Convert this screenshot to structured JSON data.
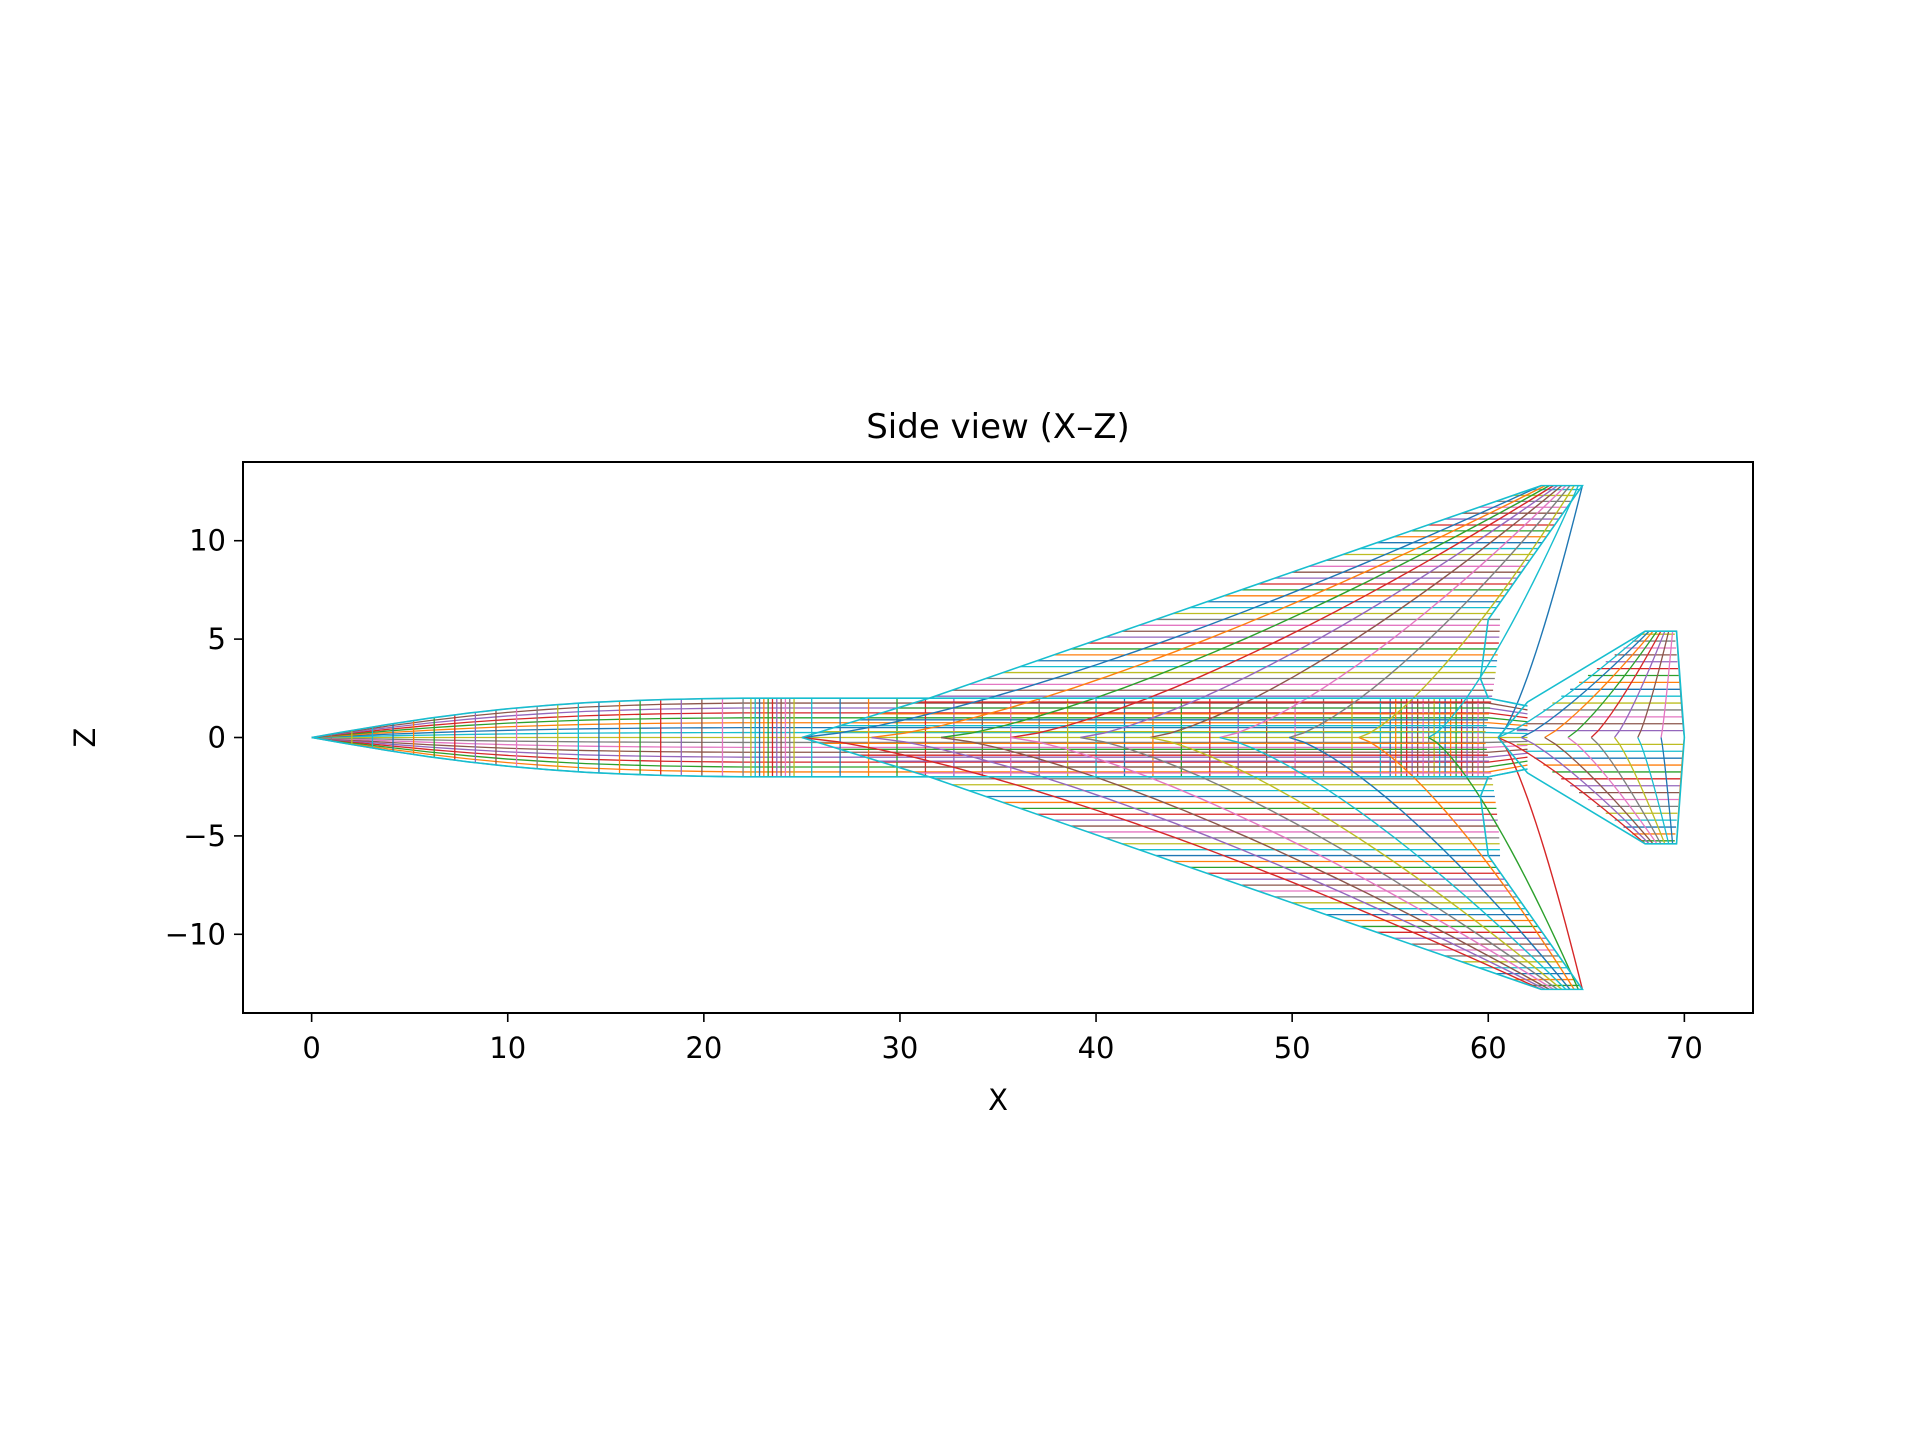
{
  "chart_data": {
    "type": "line",
    "title": "Side view (X–Z)",
    "xlabel": "X",
    "ylabel": "Z",
    "xlim": [
      -3.5,
      73.5
    ],
    "ylim": [
      -14,
      14
    ],
    "xticks": [
      0,
      10,
      20,
      30,
      40,
      50,
      60,
      70
    ],
    "yticks": [
      -10,
      -5,
      0,
      5,
      10
    ],
    "xtick_labels": [
      "0",
      "10",
      "20",
      "30",
      "40",
      "50",
      "60",
      "70"
    ],
    "ytick_labels": [
      "−10",
      "−5",
      "0",
      "5",
      "10"
    ],
    "grid": false,
    "legend": "none",
    "series_colors": [
      "#1f77b4",
      "#ff7f0e",
      "#2ca02c",
      "#d62728",
      "#9467bd",
      "#8c564b",
      "#e377c2",
      "#7f7f7f",
      "#bcbd22",
      "#17becf"
    ],
    "components": [
      {
        "name": "fuselage",
        "outline": {
          "x": [
            0,
            2,
            4,
            6,
            8,
            10,
            12,
            14,
            16,
            18,
            20,
            22,
            25,
            28,
            31,
            34,
            37,
            40,
            43,
            46,
            49,
            52,
            55,
            58,
            60,
            62
          ],
          "z": [
            0,
            0.35,
            0.68,
            0.98,
            1.24,
            1.46,
            1.63,
            1.77,
            1.86,
            1.93,
            1.97,
            2.0,
            2.0,
            2.0,
            2.0,
            2.0,
            2.0,
            2.0,
            2.0,
            2.0,
            2.0,
            2.0,
            2.0,
            2.0,
            2.0,
            1.6
          ]
        },
        "station_count": 90
      },
      {
        "name": "main-wing",
        "outline": {
          "x": [
            25,
            31.5,
            35,
            40,
            45,
            50,
            54,
            58,
            60,
            62.7,
            64.8,
            60,
            58,
            55,
            50,
            45,
            40,
            35,
            31.5,
            25
          ],
          "z": [
            0,
            2.0,
            3.3,
            4.9,
            6.5,
            8.2,
            9.7,
            11.3,
            12.8,
            12.8,
            12.8,
            6.0,
            4.9,
            3.8,
            2.6,
            1.7,
            0.9,
            0.3,
            0.05,
            0
          ]
        }
      },
      {
        "name": "tail",
        "outline": {
          "x": [
            60.5,
            62,
            64,
            66,
            68,
            69.6,
            70,
            69.6,
            68,
            66,
            64,
            62,
            60.5
          ],
          "z": [
            0,
            1.8,
            2.9,
            4.0,
            5.4,
            5.4,
            0,
            -5.4,
            -5.4,
            -4.0,
            -2.9,
            -1.8,
            0
          ]
        }
      }
    ]
  }
}
